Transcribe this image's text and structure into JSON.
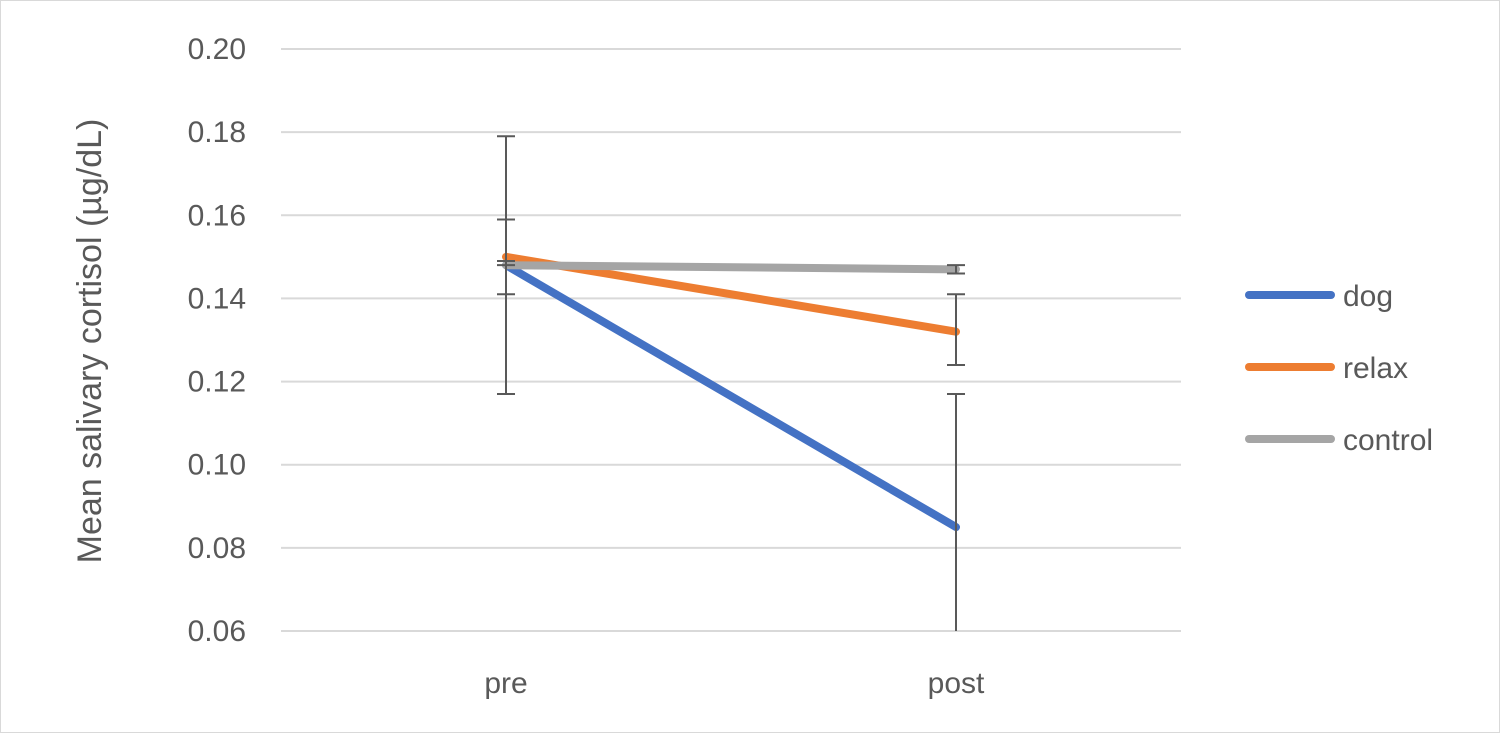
{
  "chart_data": {
    "type": "line",
    "title": "",
    "xlabel": "",
    "ylabel": "Mean salivary cortisol (µg/dL)",
    "categories": [
      "pre",
      "post"
    ],
    "ylim": [
      0.06,
      0.2
    ],
    "yticks": [
      0.2,
      0.18,
      0.16,
      0.14,
      0.12,
      0.1,
      0.08,
      0.06
    ],
    "ytick_labels": [
      "0.20",
      "0.18",
      "0.16",
      "0.14",
      "0.12",
      "0.10",
      "0.08",
      "0.06"
    ],
    "grid": true,
    "legend_position": "right",
    "series": [
      {
        "name": "dog",
        "values": [
          0.148,
          0.085
        ],
        "error_low": [
          0.117,
          0.06
        ],
        "error_high": [
          0.179,
          0.117
        ],
        "color": "#4472C4"
      },
      {
        "name": "relax",
        "values": [
          0.15,
          0.132
        ],
        "error_low": [
          0.141,
          0.124
        ],
        "error_high": [
          0.159,
          0.141
        ],
        "color": "#ED7D31"
      },
      {
        "name": "control",
        "values": [
          0.148,
          0.147
        ],
        "error_low": [
          0.148,
          0.146
        ],
        "error_high": [
          0.149,
          0.148
        ],
        "color": "#A5A5A5"
      }
    ]
  }
}
